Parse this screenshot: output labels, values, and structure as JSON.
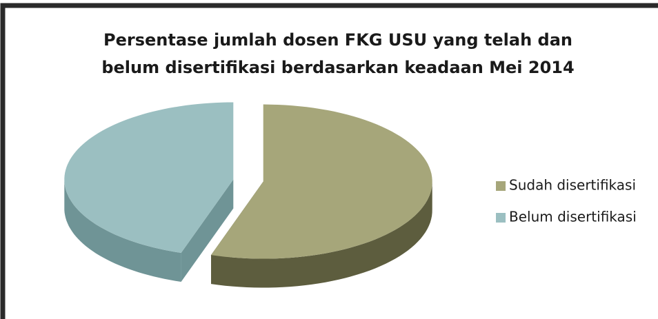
{
  "chart_data": {
    "type": "pie",
    "title": [
      "Persentase jumlah dosen FKG USU yang telah dan",
      "belum disertifikasi berdasarkan keadaan Mei 2014"
    ],
    "categories": [
      "Sudah disertifikasi",
      "Belum disertifikasi"
    ],
    "values": [
      55,
      45
    ],
    "colors": [
      "#a6a67a",
      "#9bbfc1"
    ],
    "side_colors": [
      "#5d5d3e",
      "#6f9496"
    ],
    "legend": "right"
  }
}
